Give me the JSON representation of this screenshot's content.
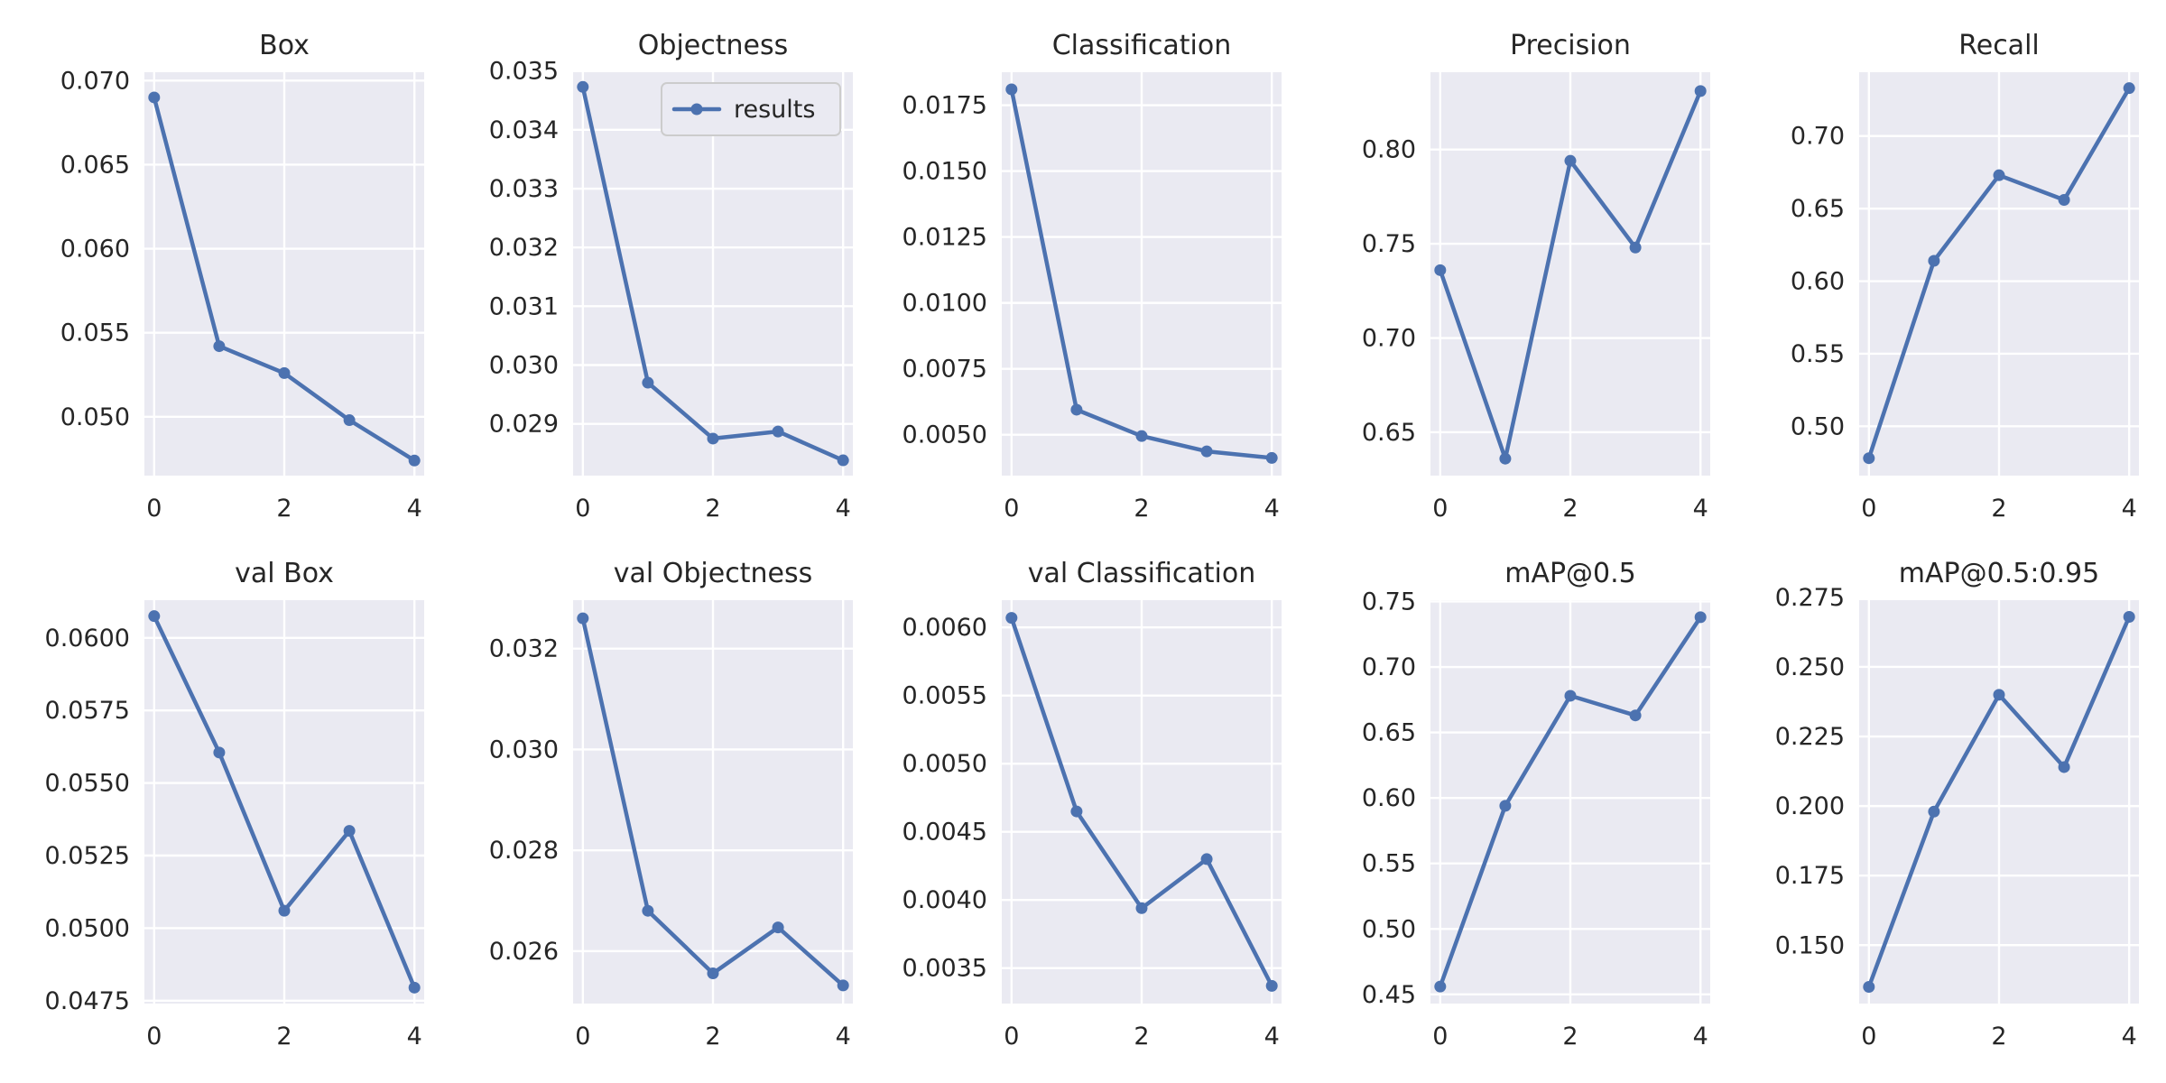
{
  "figure": {
    "line_color": "#4c72b0",
    "background": "#eaeaf2",
    "grid_color": "#ffffff",
    "legend": {
      "label": "results",
      "panel": 1,
      "placement": "upper-right"
    }
  },
  "chart_data": [
    {
      "type": "line",
      "title": "Box",
      "x": [
        0,
        1,
        2,
        3,
        4
      ],
      "series": [
        {
          "values": [
            0.069,
            0.0542,
            0.0526,
            0.0498,
            0.0474
          ]
        }
      ],
      "ylim": [
        0.0465,
        0.0705
      ],
      "xlim": [
        -0.15,
        4.15
      ],
      "xticks": [
        0,
        2,
        4
      ],
      "yticks": [
        0.05,
        0.055,
        0.06,
        0.065,
        0.07
      ],
      "yticklabels": [
        "0.050",
        "0.055",
        "0.060",
        "0.065",
        "0.070"
      ],
      "grid": true
    },
    {
      "type": "line",
      "title": "Objectness",
      "x": [
        0,
        1,
        2,
        3,
        4
      ],
      "series": [
        {
          "name": "results",
          "values": [
            0.03473,
            0.0297,
            0.02875,
            0.02887,
            0.02838
          ]
        }
      ],
      "ylim": [
        0.02812,
        0.03498
      ],
      "xlim": [
        -0.15,
        4.15
      ],
      "xticks": [
        0,
        2,
        4
      ],
      "yticks": [
        0.029,
        0.03,
        0.031,
        0.032,
        0.033,
        0.034,
        0.035
      ],
      "yticklabels": [
        "0.029",
        "0.030",
        "0.031",
        "0.032",
        "0.033",
        "0.034",
        "0.035"
      ],
      "grid": true,
      "legend": "upper-right"
    },
    {
      "type": "line",
      "title": "Classification",
      "x": [
        0,
        1,
        2,
        3,
        4
      ],
      "series": [
        {
          "values": [
            0.0181,
            0.00595,
            0.00495,
            0.00437,
            0.00412
          ]
        }
      ],
      "ylim": [
        0.00345,
        0.01875
      ],
      "xlim": [
        -0.15,
        4.15
      ],
      "xticks": [
        0,
        2,
        4
      ],
      "yticks": [
        0.005,
        0.0075,
        0.01,
        0.0125,
        0.015,
        0.0175
      ],
      "yticklabels": [
        "0.0050",
        "0.0075",
        "0.0100",
        "0.0125",
        "0.0150",
        "0.0175"
      ],
      "grid": true
    },
    {
      "type": "line",
      "title": "Precision",
      "x": [
        0,
        1,
        2,
        3,
        4
      ],
      "series": [
        {
          "values": [
            0.736,
            0.636,
            0.794,
            0.748,
            0.831
          ]
        }
      ],
      "ylim": [
        0.627,
        0.841
      ],
      "xlim": [
        -0.15,
        4.15
      ],
      "xticks": [
        0,
        2,
        4
      ],
      "yticks": [
        0.65,
        0.7,
        0.75,
        0.8
      ],
      "yticklabels": [
        "0.65",
        "0.70",
        "0.75",
        "0.80"
      ],
      "grid": true
    },
    {
      "type": "line",
      "title": "Recall",
      "x": [
        0,
        1,
        2,
        3,
        4
      ],
      "series": [
        {
          "values": [
            0.478,
            0.614,
            0.673,
            0.656,
            0.733
          ]
        }
      ],
      "ylim": [
        0.466,
        0.744
      ],
      "xlim": [
        -0.15,
        4.15
      ],
      "xticks": [
        0,
        2,
        4
      ],
      "yticks": [
        0.5,
        0.55,
        0.6,
        0.65,
        0.7
      ],
      "yticklabels": [
        "0.50",
        "0.55",
        "0.60",
        "0.65",
        "0.70"
      ],
      "grid": true
    },
    {
      "type": "line",
      "title": "val Box",
      "x": [
        0,
        1,
        2,
        3,
        4
      ],
      "series": [
        {
          "values": [
            0.06075,
            0.05605,
            0.0506,
            0.05335,
            0.04795
          ]
        }
      ],
      "ylim": [
        0.0474,
        0.0613
      ],
      "xlim": [
        -0.15,
        4.15
      ],
      "xticks": [
        0,
        2,
        4
      ],
      "yticks": [
        0.0475,
        0.05,
        0.0525,
        0.055,
        0.0575,
        0.06
      ],
      "yticklabels": [
        "0.0475",
        "0.0500",
        "0.0525",
        "0.0550",
        "0.0575",
        "0.0600"
      ],
      "grid": true
    },
    {
      "type": "line",
      "title": "val Objectness",
      "x": [
        0,
        1,
        2,
        3,
        4
      ],
      "series": [
        {
          "values": [
            0.0326,
            0.0268,
            0.02556,
            0.02647,
            0.02532
          ]
        }
      ],
      "ylim": [
        0.02496,
        0.03296
      ],
      "xlim": [
        -0.15,
        4.15
      ],
      "xticks": [
        0,
        2,
        4
      ],
      "yticks": [
        0.026,
        0.028,
        0.03,
        0.032
      ],
      "yticklabels": [
        "0.026",
        "0.028",
        "0.030",
        "0.032"
      ],
      "grid": true
    },
    {
      "type": "line",
      "title": "val Classification",
      "x": [
        0,
        1,
        2,
        3,
        4
      ],
      "series": [
        {
          "values": [
            0.00607,
            0.00465,
            0.00394,
            0.0043,
            0.00337
          ]
        }
      ],
      "ylim": [
        0.00324,
        0.0062
      ],
      "xlim": [
        -0.15,
        4.15
      ],
      "xticks": [
        0,
        2,
        4
      ],
      "yticks": [
        0.0035,
        0.004,
        0.0045,
        0.005,
        0.0055,
        0.006
      ],
      "yticklabels": [
        "0.0035",
        "0.0040",
        "0.0045",
        "0.0050",
        "0.0055",
        "0.0060"
      ],
      "grid": true
    },
    {
      "type": "line",
      "title": "mAP@0.5",
      "x": [
        0,
        1,
        2,
        3,
        4
      ],
      "series": [
        {
          "values": [
            0.456,
            0.594,
            0.678,
            0.663,
            0.738
          ]
        }
      ],
      "ylim": [
        0.443,
        0.751
      ],
      "xlim": [
        -0.15,
        4.15
      ],
      "xticks": [
        0,
        2,
        4
      ],
      "yticks": [
        0.45,
        0.5,
        0.55,
        0.6,
        0.65,
        0.7,
        0.75
      ],
      "yticklabels": [
        "0.45",
        "0.50",
        "0.55",
        "0.60",
        "0.65",
        "0.70",
        "0.75"
      ],
      "grid": true
    },
    {
      "type": "line",
      "title": "mAP@0.5:0.95",
      "x": [
        0,
        1,
        2,
        3,
        4
      ],
      "series": [
        {
          "values": [
            0.135,
            0.198,
            0.24,
            0.214,
            0.268
          ]
        }
      ],
      "ylim": [
        0.129,
        0.274
      ],
      "xlim": [
        -0.15,
        4.15
      ],
      "xticks": [
        0,
        2,
        4
      ],
      "yticks": [
        0.15,
        0.175,
        0.2,
        0.225,
        0.25,
        0.275
      ],
      "yticklabels": [
        "0.150",
        "0.175",
        "0.200",
        "0.225",
        "0.250",
        "0.275"
      ],
      "grid": true
    }
  ]
}
